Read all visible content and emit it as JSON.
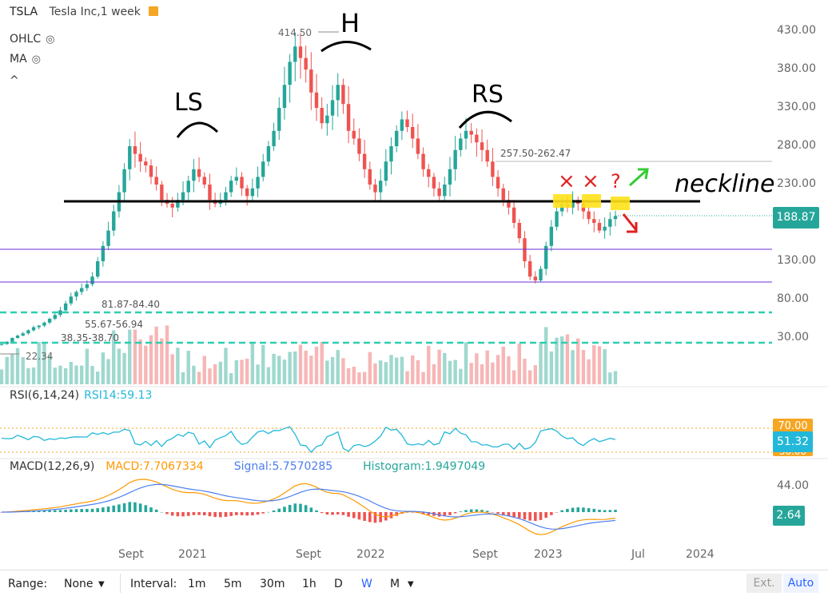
{
  "header": {
    "symbol": "TSLA",
    "title": "Tesla Inc,1 week"
  },
  "indicators": {
    "ohlc": "OHLC",
    "ma": "MA",
    "collapse": "^"
  },
  "price_axis": [
    "430.00",
    "380.00",
    "330.00",
    "280.00",
    "230.00",
    "180.00",
    "130.00",
    "80.00",
    "30.00"
  ],
  "last_price": "188.87",
  "annotations": {
    "high": "414.50",
    "range1": "257.50-262.47",
    "range2": "81.87-84.40",
    "range3": "55.67-56.94",
    "range4": "38.35-38.70",
    "low": "22.34",
    "ls": "LS",
    "h": "H",
    "rs": "RS",
    "neckline": "neckline",
    "x1": "×",
    "x2": "×",
    "q": "?"
  },
  "rsi": {
    "label": "RSI(6,14,24)",
    "value": "RSI14:59.13",
    "level_upper": "70.00",
    "current": "51.32",
    "level_lower": "30.00"
  },
  "macd": {
    "label": "MACD(12,26,9)",
    "macd": "MACD:7.7067334",
    "signal": "Signal:5.7570285",
    "histogram": "Histogram:1.9497049",
    "axis": "44.00",
    "current": "2.64"
  },
  "time_axis": [
    "Sept",
    "2021",
    "Sept",
    "2022",
    "Sept",
    "2023",
    "Jul",
    "2024"
  ],
  "toolbar": {
    "range_label": "Range:",
    "range_value": "None",
    "interval_label": "Interval:",
    "intervals": [
      "1m",
      "5m",
      "30m",
      "1h",
      "D",
      "W",
      "M"
    ],
    "active_interval": "W",
    "ext": "Ext.",
    "auto": "Auto"
  },
  "colors": {
    "up": "#26a69a",
    "down": "#ef5350",
    "neckline": "#000000",
    "support": "#2eceb0",
    "purple": "#6a2fd6",
    "last": "#26a69a",
    "rsi": "#22b8d9",
    "macd": "#ff9800",
    "signal": "#4c7ef0"
  },
  "chart_data": {
    "type": "candlestick",
    "interval": "1 week",
    "approx_weekly_closes": [
      22,
      25,
      30,
      33,
      36,
      40,
      44,
      46,
      50,
      55,
      60,
      66,
      75,
      84,
      90,
      95,
      100,
      110,
      130,
      150,
      170,
      195,
      220,
      250,
      280,
      270,
      260,
      255,
      240,
      230,
      210,
      205,
      200,
      210,
      220,
      235,
      250,
      240,
      230,
      210,
      205,
      210,
      220,
      235,
      240,
      225,
      215,
      225,
      240,
      260,
      280,
      300,
      330,
      360,
      390,
      410,
      395,
      380,
      350,
      330,
      310,
      320,
      340,
      360,
      335,
      300,
      290,
      270,
      250,
      230,
      220,
      235,
      260,
      280,
      300,
      315,
      305,
      290,
      270,
      250,
      240,
      225,
      215,
      230,
      250,
      275,
      290,
      300,
      295,
      285,
      275,
      260,
      240,
      225,
      210,
      200,
      180,
      160,
      130,
      110,
      105,
      120,
      150,
      175,
      195,
      205,
      200,
      210,
      205,
      195,
      185,
      180,
      170,
      175,
      185,
      189
    ],
    "ylim": [
      0,
      460
    ]
  }
}
